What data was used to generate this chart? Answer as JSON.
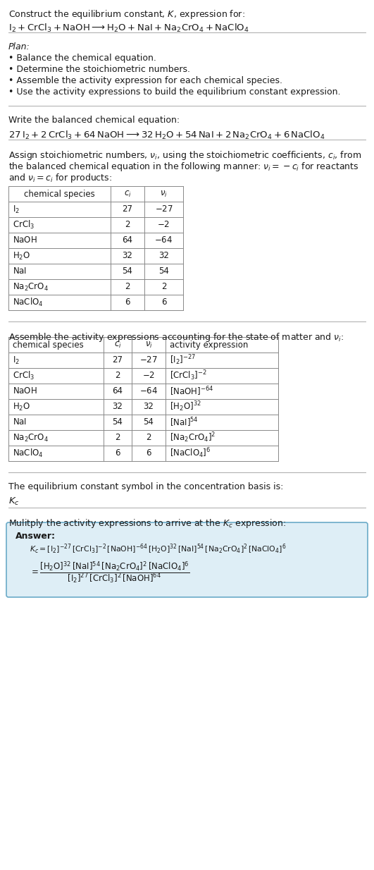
{
  "bg_color": "#ffffff",
  "text_color": "#1a1a1a",
  "title_line1": "Construct the equilibrium constant, $K$, expression for:",
  "title_line2": "$\\mathrm{I_2 + CrCl_3 + NaOH \\longrightarrow H_2O + NaI + Na_2CrO_4 + NaClO_4}$",
  "plan_header": "Plan:",
  "plan_items": [
    "Balance the chemical equation.",
    "Determine the stoichiometric numbers.",
    "Assemble the activity expression for each chemical species.",
    "Use the activity expressions to build the equilibrium constant expression."
  ],
  "balanced_header": "Write the balanced chemical equation:",
  "balanced_eq": "$27\\,\\mathrm{I_2} + 2\\,\\mathrm{CrCl_3} + 64\\,\\mathrm{NaOH} \\longrightarrow 32\\,\\mathrm{H_2O} + 54\\,\\mathrm{NaI} + 2\\,\\mathrm{Na_2CrO_4} + 6\\,\\mathrm{NaClO_4}$",
  "stoich_intro_lines": [
    "Assign stoichiometric numbers, $\\nu_i$, using the stoichiometric coefficients, $c_i$, from",
    "the balanced chemical equation in the following manner: $\\nu_i = -c_i$ for reactants",
    "and $\\nu_i = c_i$ for products:"
  ],
  "table1_header": [
    "chemical species",
    "$c_i$",
    "$\\nu_i$"
  ],
  "table1_col_align": [
    "left",
    "center",
    "center"
  ],
  "table1_rows": [
    [
      "$\\mathrm{I_2}$",
      "27",
      "$-27$"
    ],
    [
      "$\\mathrm{CrCl_3}$",
      "2",
      "$-2$"
    ],
    [
      "$\\mathrm{NaOH}$",
      "64",
      "$-64$"
    ],
    [
      "$\\mathrm{H_2O}$",
      "32",
      "32"
    ],
    [
      "$\\mathrm{NaI}$",
      "54",
      "54"
    ],
    [
      "$\\mathrm{Na_2CrO_4}$",
      "2",
      "2"
    ],
    [
      "$\\mathrm{NaClO_4}$",
      "6",
      "6"
    ]
  ],
  "activity_intro": "Assemble the activity expressions accounting for the state of matter and $\\nu_i$:",
  "table2_header": [
    "chemical species",
    "$c_i$",
    "$\\nu_i$",
    "activity expression"
  ],
  "table2_col_align": [
    "left",
    "center",
    "center",
    "left"
  ],
  "table2_rows": [
    [
      "$\\mathrm{I_2}$",
      "27",
      "$-27$",
      "$[\\mathrm{I_2}]^{-27}$"
    ],
    [
      "$\\mathrm{CrCl_3}$",
      "2",
      "$-2$",
      "$[\\mathrm{CrCl_3}]^{-2}$"
    ],
    [
      "$\\mathrm{NaOH}$",
      "64",
      "$-64$",
      "$[\\mathrm{NaOH}]^{-64}$"
    ],
    [
      "$\\mathrm{H_2O}$",
      "32",
      "32",
      "$[\\mathrm{H_2O}]^{32}$"
    ],
    [
      "$\\mathrm{NaI}$",
      "54",
      "54",
      "$[\\mathrm{NaI}]^{54}$"
    ],
    [
      "$\\mathrm{Na_2CrO_4}$",
      "2",
      "2",
      "$[\\mathrm{Na_2CrO_4}]^{2}$"
    ],
    [
      "$\\mathrm{NaClO_4}$",
      "6",
      "6",
      "$[\\mathrm{NaClO_4}]^{6}$"
    ]
  ],
  "kc_intro": "The equilibrium constant symbol in the concentration basis is:",
  "kc_symbol": "$K_c$",
  "multiply_text": "Mulitply the activity expressions to arrive at the $K_c$ expression:",
  "answer_label": "Answer:",
  "answer_line1": "$K_c = [\\mathrm{I_2}]^{-27}\\,[\\mathrm{CrCl_3}]^{-2}\\,[\\mathrm{NaOH}]^{-64}\\,[\\mathrm{H_2O}]^{32}\\,[\\mathrm{NaI}]^{54}\\,[\\mathrm{Na_2CrO_4}]^{2}\\,[\\mathrm{NaClO_4}]^{6}$",
  "answer_eq_prefix": "$= \\dfrac{[\\mathrm{H_2O}]^{32}\\,[\\mathrm{NaI}]^{54}\\,[\\mathrm{Na_2CrO_4}]^{2}\\,[\\mathrm{NaClO_4}]^{6}}{[\\mathrm{I_2}]^{27}\\,[\\mathrm{CrCl_3}]^{2}\\,[\\mathrm{NaOH}]^{64}}$",
  "answer_box_bg": "#deeef6",
  "answer_box_border": "#6aaac8",
  "table_border_color": "#888888",
  "rule_color": "#aaaaaa"
}
